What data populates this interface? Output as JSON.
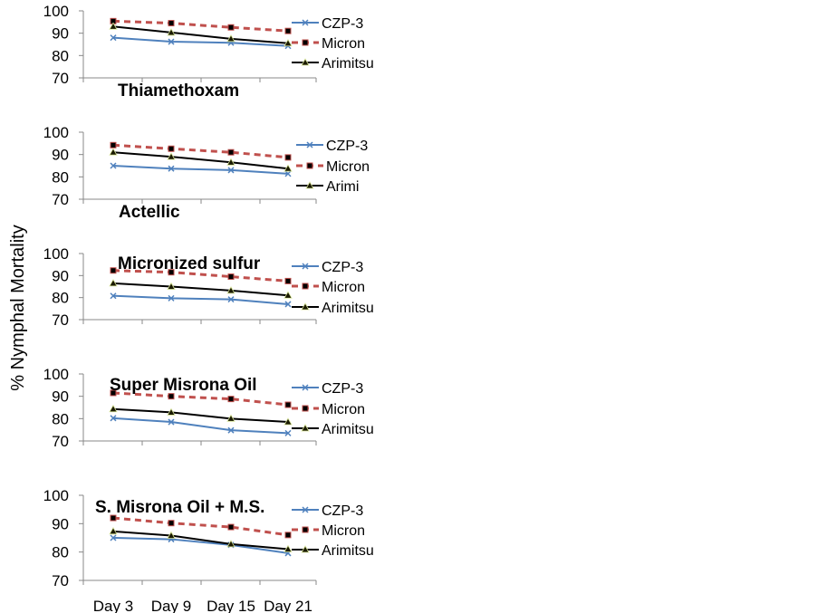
{
  "figure": {
    "ylabel": "% Nymphal Mortality",
    "series_styles": {
      "CZP-3": {
        "color": "#4f81bd",
        "marker": "x",
        "dash": ""
      },
      "Micron": {
        "color": "#c0504d",
        "marker": "square",
        "dash": "7,5"
      },
      "Arimitsu": {
        "color": "#000000",
        "marker": "triangle",
        "dash": ""
      }
    }
  },
  "chart_data": [
    {
      "type": "line",
      "title": "Thiamethoxam",
      "x": [
        "Day 3",
        "Day 9",
        "Day 15",
        "Day 21"
      ],
      "ylim": [
        70,
        100
      ],
      "yticks": [
        70,
        80,
        90,
        100
      ],
      "show_x_ticks": false,
      "series": [
        {
          "name": "CZP-3",
          "values": [
            88,
            86.2,
            85.7,
            84.3
          ]
        },
        {
          "name": "Micron",
          "values": [
            95.4,
            94.5,
            92.6,
            91
          ]
        },
        {
          "name": "Arimitsu",
          "values": [
            93,
            90.3,
            87.5,
            85.5
          ]
        }
      ]
    },
    {
      "type": "line",
      "title": "Actellic",
      "x": [
        "Day 3",
        "Day 9",
        "Day 15",
        "Day 21"
      ],
      "ylim": [
        70,
        100
      ],
      "yticks": [
        70,
        80,
        90,
        100
      ],
      "show_x_ticks": false,
      "series": [
        {
          "name": "CZP-3",
          "values": [
            85,
            83.7,
            83,
            81.4
          ]
        },
        {
          "name": "Micron",
          "values": [
            94.2,
            92.6,
            91,
            88.7
          ]
        },
        {
          "name": "Arimi",
          "values": [
            91,
            89,
            86.5,
            83.7
          ]
        }
      ]
    },
    {
      "type": "line",
      "title": "Micronized sulfur",
      "x": [
        "Day 3",
        "Day 9",
        "Day 15",
        "Day 21"
      ],
      "ylim": [
        70,
        100
      ],
      "yticks": [
        70,
        80,
        90,
        100
      ],
      "show_x_ticks": false,
      "series": [
        {
          "name": "CZP-3",
          "values": [
            80.8,
            79.7,
            79.2,
            77
          ]
        },
        {
          "name": "Micron",
          "values": [
            92.3,
            91.5,
            89.5,
            87.5
          ]
        },
        {
          "name": "Arimitsu",
          "values": [
            86.5,
            85,
            83.2,
            81
          ]
        }
      ]
    },
    {
      "type": "line",
      "title": "Super Misrona Oil",
      "x": [
        "Day 3",
        "Day 9",
        "Day 15",
        "Day 21"
      ],
      "ylim": [
        70,
        100
      ],
      "yticks": [
        70,
        80,
        90,
        100
      ],
      "show_x_ticks": false,
      "series": [
        {
          "name": "CZP-3",
          "values": [
            80.2,
            78.5,
            74.8,
            73.5
          ]
        },
        {
          "name": "Micron",
          "values": [
            91.5,
            90,
            88.8,
            86.2
          ]
        },
        {
          "name": "Arimitsu",
          "values": [
            84.3,
            82.8,
            80,
            78.5
          ]
        }
      ]
    },
    {
      "type": "line",
      "title": "S. Misrona Oil + M.S.",
      "x": [
        "Day 3",
        "Day 9",
        "Day 15",
        "Day 21"
      ],
      "ylim": [
        70,
        100
      ],
      "yticks": [
        70,
        80,
        90,
        100
      ],
      "show_x_ticks": true,
      "series": [
        {
          "name": "CZP-3",
          "values": [
            85,
            84.5,
            82.5,
            79.6
          ]
        },
        {
          "name": "Micron",
          "values": [
            92,
            90.2,
            88.8,
            86
          ]
        },
        {
          "name": "Arimitsu",
          "values": [
            87.3,
            85.8,
            82.8,
            81
          ]
        }
      ]
    }
  ]
}
